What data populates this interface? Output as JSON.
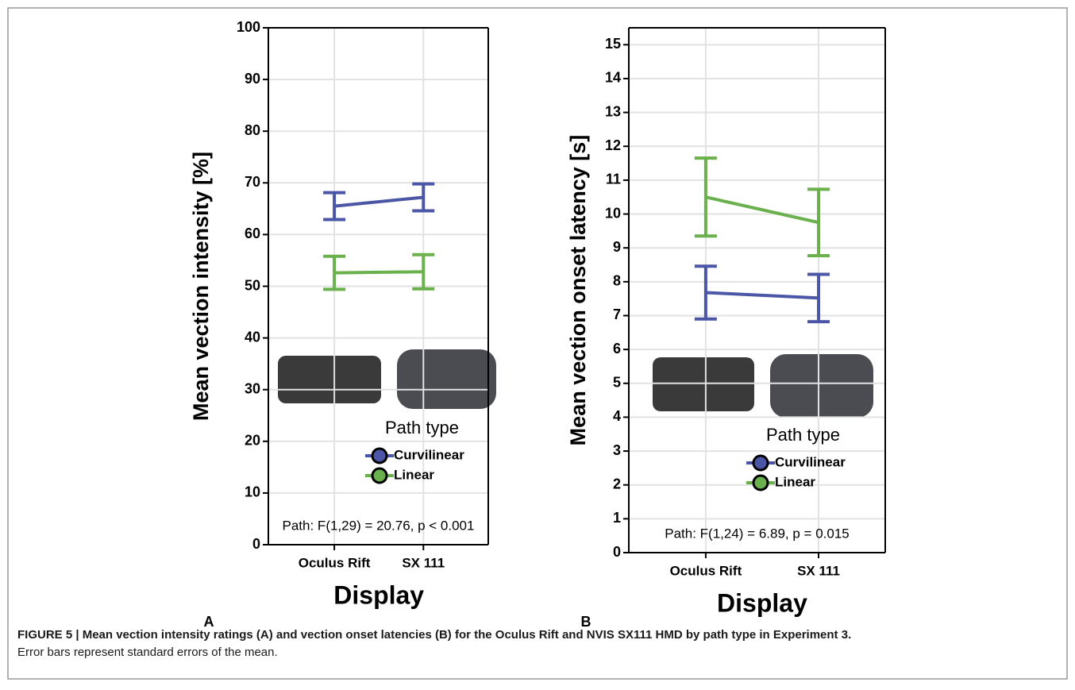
{
  "chart_data": [
    {
      "type": "line",
      "panel": "A",
      "ylabel": "Mean vection intensity [%]",
      "xlabel": "Display",
      "categories": [
        "Oculus Rift",
        "SX 111"
      ],
      "series": [
        {
          "name": "Curvilinear",
          "color": "#4b56a6",
          "values": [
            65.5,
            67.2
          ],
          "errors": [
            2.6,
            2.6
          ]
        },
        {
          "name": "Linear",
          "color": "#6ab04c",
          "values": [
            52.6,
            52.8
          ],
          "errors": [
            3.2,
            3.3
          ]
        }
      ],
      "ylim": [
        0,
        100
      ],
      "yticks": [
        0,
        10,
        20,
        30,
        40,
        50,
        60,
        70,
        80,
        90,
        100
      ],
      "grid": true,
      "legend_title": "Path type",
      "annotation": "Path: F(1,29) = 20.76, p < 0.001"
    },
    {
      "type": "line",
      "panel": "B",
      "ylabel": "Mean vection onset latency [s]",
      "xlabel": "Display",
      "categories": [
        "Oculus Rift",
        "SX 111"
      ],
      "series": [
        {
          "name": "Curvilinear",
          "color": "#4b56a6",
          "values": [
            7.68,
            7.52
          ],
          "errors": [
            0.78,
            0.7
          ]
        },
        {
          "name": "Linear",
          "color": "#6ab04c",
          "values": [
            10.5,
            9.75
          ],
          "errors": [
            1.15,
            0.98
          ]
        }
      ],
      "ylim": [
        0,
        15.5
      ],
      "yticks": [
        0,
        1,
        2,
        3,
        4,
        5,
        6,
        7,
        8,
        9,
        10,
        11,
        12,
        13,
        14,
        15
      ],
      "grid": true,
      "legend_title": "Path type",
      "annotation": "Path: F(1,24) = 6.89, p = 0.015"
    }
  ],
  "caption": {
    "title": "FIGURE 5 | Mean vection intensity ratings (A) and vection onset latencies (B) for the Oculus Rift and NVIS SX111 HMD by path type in Experiment 3.",
    "note": "Error bars represent standard errors of the mean."
  }
}
